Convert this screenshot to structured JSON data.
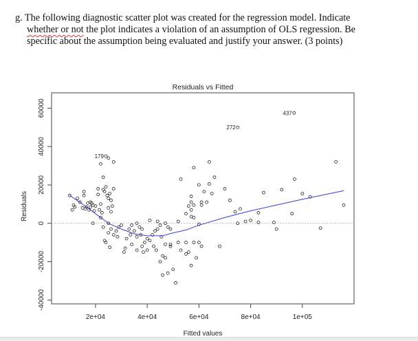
{
  "question": {
    "prefix": "g. The following diagnostic scatter plot was created for the regression model.  Indicate",
    "line2_flagged": "whether or not",
    "line2_rest": " the plot indicates a violation of an assumption of OLS regression.  Be",
    "line3": "specific about the assumption being evaluated and justify your answer.  (3 points)"
  },
  "chart_data": {
    "type": "scatter",
    "title": "Residuals vs Fitted",
    "xlabel": "Fitted values",
    "ylabel": "Residuals",
    "xlim": [
      3000,
      120000
    ],
    "ylim": [
      -42000,
      68000
    ],
    "xticks": [
      20000,
      40000,
      60000,
      80000,
      100000
    ],
    "xtick_labels": [
      "2e+04",
      "4e+04",
      "6e+04",
      "8e+04",
      "1e+05"
    ],
    "yticks": [
      -40000,
      -20000,
      0,
      20000,
      40000,
      60000
    ],
    "ytick_labels": [
      "-40000",
      "-20000",
      "0",
      "20000",
      "40000",
      "60000"
    ],
    "reference_line": 0,
    "colors": {
      "points": "#222222",
      "smoother": "#3a3ad8",
      "reference": "#aaaaaa"
    },
    "labeled_points": [
      {
        "label": "179",
        "x": 24000,
        "y": 35000
      },
      {
        "label": "272",
        "x": 75000,
        "y": 50000
      },
      {
        "label": "437",
        "x": 96800,
        "y": 57500
      }
    ],
    "smoother": [
      [
        10000,
        14500
      ],
      [
        15000,
        10000
      ],
      [
        20000,
        5000
      ],
      [
        25000,
        0
      ],
      [
        30000,
        -3000
      ],
      [
        35000,
        -5500
      ],
      [
        40000,
        -6500
      ],
      [
        46000,
        -6500
      ],
      [
        50000,
        -5000
      ],
      [
        55000,
        -3500
      ],
      [
        60000,
        -1000
      ],
      [
        70000,
        3000
      ],
      [
        80000,
        6500
      ],
      [
        90000,
        9500
      ],
      [
        100000,
        12500
      ],
      [
        116000,
        17000
      ]
    ],
    "points": [
      [
        10000,
        14500
      ],
      [
        11000,
        7000
      ],
      [
        11500,
        9500
      ],
      [
        12000,
        8500
      ],
      [
        13000,
        13000
      ],
      [
        14000,
        11000
      ],
      [
        15000,
        8000
      ],
      [
        15500,
        14500
      ],
      [
        15500,
        16500
      ],
      [
        16000,
        7500
      ],
      [
        16500,
        8500
      ],
      [
        17000,
        10500
      ],
      [
        17500,
        7000
      ],
      [
        18000,
        11000
      ],
      [
        18500,
        10500
      ],
      [
        18000,
        8500
      ],
      [
        19000,
        9500
      ],
      [
        19500,
        6500
      ],
      [
        19000,
        0
      ],
      [
        20000,
        9000
      ],
      [
        21000,
        18000
      ],
      [
        21000,
        15000
      ],
      [
        21500,
        7000
      ],
      [
        22000,
        10000
      ],
      [
        22500,
        5500
      ],
      [
        22000,
        31000
      ],
      [
        23000,
        24000
      ],
      [
        23000,
        17500
      ],
      [
        23500,
        16500
      ],
      [
        24000,
        19000
      ],
      [
        24500,
        14500
      ],
      [
        25000,
        13000
      ],
      [
        25500,
        15500
      ],
      [
        26000,
        12000
      ],
      [
        25000,
        8000
      ],
      [
        26000,
        6000
      ],
      [
        26500,
        9000
      ],
      [
        27000,
        18000
      ],
      [
        27000,
        32000
      ],
      [
        25000,
        34000
      ],
      [
        22000,
        3000
      ],
      [
        23000,
        -2000
      ],
      [
        23500,
        -9000
      ],
      [
        24000,
        -10000
      ],
      [
        25000,
        -5000
      ],
      [
        25000,
        0
      ],
      [
        25500,
        -12500
      ],
      [
        26000,
        -3000
      ],
      [
        27000,
        -6000
      ],
      [
        28000,
        -4000
      ],
      [
        28500,
        -7000
      ],
      [
        29000,
        -2000
      ],
      [
        30000,
        -1000
      ],
      [
        31000,
        -15000
      ],
      [
        31500,
        -13000
      ],
      [
        32000,
        -8000
      ],
      [
        33000,
        -3000
      ],
      [
        33500,
        -6000
      ],
      [
        34000,
        -1000
      ],
      [
        35000,
        -4000
      ],
      [
        36000,
        -7000
      ],
      [
        36000,
        0
      ],
      [
        37000,
        -2000
      ],
      [
        37500,
        -6000
      ],
      [
        38000,
        -12000
      ],
      [
        38500,
        -15000
      ],
      [
        39000,
        -10000
      ],
      [
        40000,
        -14000
      ],
      [
        40000,
        -8000
      ],
      [
        41000,
        -9000
      ],
      [
        42000,
        -6000
      ],
      [
        42500,
        -12000
      ],
      [
        43000,
        -4000
      ],
      [
        43500,
        -14000
      ],
      [
        44000,
        -3000
      ],
      [
        45000,
        -1000
      ],
      [
        45500,
        -7000
      ],
      [
        44000,
        1000
      ],
      [
        41000,
        1500
      ],
      [
        38000,
        -3000
      ],
      [
        36000,
        -14000
      ],
      [
        34000,
        -11000
      ],
      [
        47000,
        0
      ],
      [
        48000,
        -2000
      ],
      [
        49000,
        -3000
      ],
      [
        46000,
        -17000
      ],
      [
        45000,
        -20000
      ],
      [
        46000,
        -27000
      ],
      [
        48000,
        -26000
      ],
      [
        50000,
        -24000
      ],
      [
        51000,
        -31000
      ],
      [
        47000,
        -18000
      ],
      [
        47000,
        -11000
      ],
      [
        49000,
        -11000
      ],
      [
        49000,
        -12000
      ],
      [
        52000,
        -10000
      ],
      [
        53000,
        -14000
      ],
      [
        55000,
        -16000
      ],
      [
        55000,
        -10000
      ],
      [
        56000,
        -15000
      ],
      [
        57000,
        -22000
      ],
      [
        58000,
        -10000
      ],
      [
        59000,
        -18000
      ],
      [
        60000,
        -10000
      ],
      [
        61000,
        -12000
      ],
      [
        68000,
        -12000
      ],
      [
        60000,
        -500
      ],
      [
        52000,
        1000
      ],
      [
        53000,
        23000
      ],
      [
        55000,
        5000
      ],
      [
        56000,
        9000
      ],
      [
        57000,
        7000
      ],
      [
        57000,
        3500
      ],
      [
        58000,
        3000
      ],
      [
        58000,
        9500
      ],
      [
        57000,
        11000
      ],
      [
        57000,
        14000
      ],
      [
        58000,
        29000
      ],
      [
        60000,
        20000
      ],
      [
        61000,
        11000
      ],
      [
        61000,
        9500
      ],
      [
        62000,
        16500
      ],
      [
        63000,
        11000
      ],
      [
        64000,
        20500
      ],
      [
        64000,
        32000
      ],
      [
        65000,
        15500
      ],
      [
        66000,
        24000
      ],
      [
        70000,
        18000
      ],
      [
        72000,
        12000
      ],
      [
        74000,
        6000
      ],
      [
        75000,
        0
      ],
      [
        76000,
        7500
      ],
      [
        78000,
        1000
      ],
      [
        80000,
        1500
      ],
      [
        83000,
        500
      ],
      [
        83000,
        5500
      ],
      [
        85000,
        16000
      ],
      [
        89000,
        500
      ],
      [
        90000,
        -3000
      ],
      [
        92000,
        17500
      ],
      [
        96000,
        5000
      ],
      [
        97000,
        23000
      ],
      [
        100000,
        15500
      ],
      [
        103000,
        13800
      ],
      [
        107000,
        -2500
      ],
      [
        113000,
        32000
      ],
      [
        116000,
        9500
      ],
      [
        24000,
        35000
      ],
      [
        75000,
        50000
      ],
      [
        96800,
        57500
      ]
    ]
  }
}
